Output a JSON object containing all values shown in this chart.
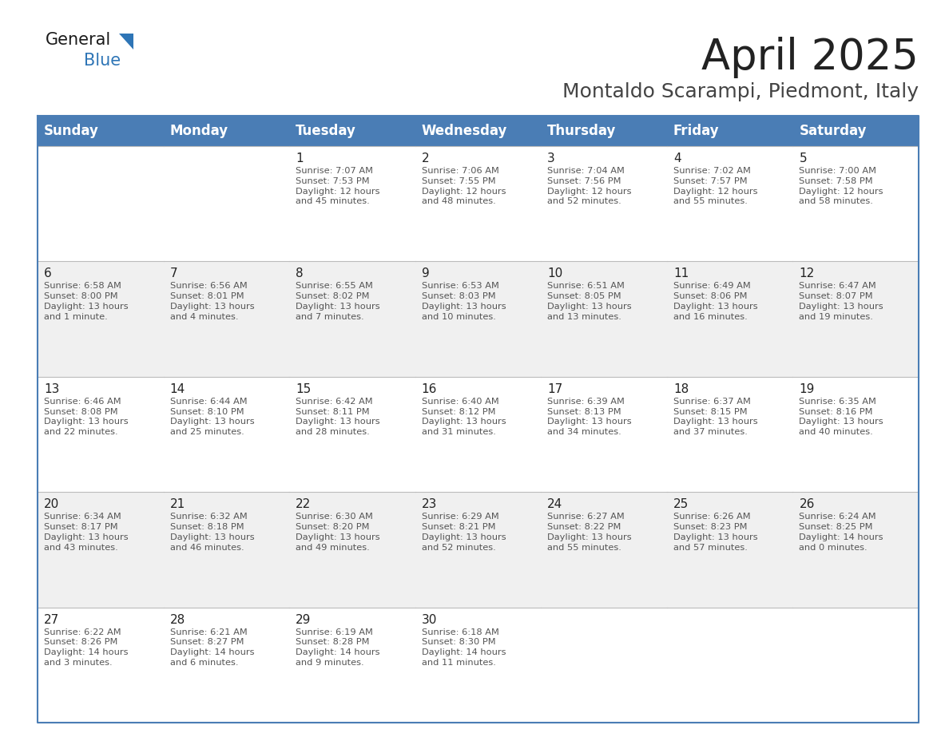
{
  "title": "April 2025",
  "subtitle": "Montaldo Scarampi, Piedmont, Italy",
  "header_bg_color": "#4a7db5",
  "header_text_color": "#FFFFFF",
  "row_bg_colors": [
    "#FFFFFF",
    "#F0F0F0"
  ],
  "border_color": "#4a7db5",
  "separator_color": "#BBBBBB",
  "day_names": [
    "Sunday",
    "Monday",
    "Tuesday",
    "Wednesday",
    "Thursday",
    "Friday",
    "Saturday"
  ],
  "title_fontsize": 38,
  "subtitle_fontsize": 18,
  "header_fontsize": 12,
  "day_num_fontsize": 11,
  "cell_text_fontsize": 8.2,
  "logo_general_color": "#1a1a1a",
  "logo_blue_color": "#2E75B6",
  "logo_triangle_color": "#2E75B6",
  "weeks": [
    [
      {
        "day": "",
        "lines": []
      },
      {
        "day": "",
        "lines": []
      },
      {
        "day": "1",
        "lines": [
          "Sunrise: 7:07 AM",
          "Sunset: 7:53 PM",
          "Daylight: 12 hours",
          "and 45 minutes."
        ]
      },
      {
        "day": "2",
        "lines": [
          "Sunrise: 7:06 AM",
          "Sunset: 7:55 PM",
          "Daylight: 12 hours",
          "and 48 minutes."
        ]
      },
      {
        "day": "3",
        "lines": [
          "Sunrise: 7:04 AM",
          "Sunset: 7:56 PM",
          "Daylight: 12 hours",
          "and 52 minutes."
        ]
      },
      {
        "day": "4",
        "lines": [
          "Sunrise: 7:02 AM",
          "Sunset: 7:57 PM",
          "Daylight: 12 hours",
          "and 55 minutes."
        ]
      },
      {
        "day": "5",
        "lines": [
          "Sunrise: 7:00 AM",
          "Sunset: 7:58 PM",
          "Daylight: 12 hours",
          "and 58 minutes."
        ]
      }
    ],
    [
      {
        "day": "6",
        "lines": [
          "Sunrise: 6:58 AM",
          "Sunset: 8:00 PM",
          "Daylight: 13 hours",
          "and 1 minute."
        ]
      },
      {
        "day": "7",
        "lines": [
          "Sunrise: 6:56 AM",
          "Sunset: 8:01 PM",
          "Daylight: 13 hours",
          "and 4 minutes."
        ]
      },
      {
        "day": "8",
        "lines": [
          "Sunrise: 6:55 AM",
          "Sunset: 8:02 PM",
          "Daylight: 13 hours",
          "and 7 minutes."
        ]
      },
      {
        "day": "9",
        "lines": [
          "Sunrise: 6:53 AM",
          "Sunset: 8:03 PM",
          "Daylight: 13 hours",
          "and 10 minutes."
        ]
      },
      {
        "day": "10",
        "lines": [
          "Sunrise: 6:51 AM",
          "Sunset: 8:05 PM",
          "Daylight: 13 hours",
          "and 13 minutes."
        ]
      },
      {
        "day": "11",
        "lines": [
          "Sunrise: 6:49 AM",
          "Sunset: 8:06 PM",
          "Daylight: 13 hours",
          "and 16 minutes."
        ]
      },
      {
        "day": "12",
        "lines": [
          "Sunrise: 6:47 AM",
          "Sunset: 8:07 PM",
          "Daylight: 13 hours",
          "and 19 minutes."
        ]
      }
    ],
    [
      {
        "day": "13",
        "lines": [
          "Sunrise: 6:46 AM",
          "Sunset: 8:08 PM",
          "Daylight: 13 hours",
          "and 22 minutes."
        ]
      },
      {
        "day": "14",
        "lines": [
          "Sunrise: 6:44 AM",
          "Sunset: 8:10 PM",
          "Daylight: 13 hours",
          "and 25 minutes."
        ]
      },
      {
        "day": "15",
        "lines": [
          "Sunrise: 6:42 AM",
          "Sunset: 8:11 PM",
          "Daylight: 13 hours",
          "and 28 minutes."
        ]
      },
      {
        "day": "16",
        "lines": [
          "Sunrise: 6:40 AM",
          "Sunset: 8:12 PM",
          "Daylight: 13 hours",
          "and 31 minutes."
        ]
      },
      {
        "day": "17",
        "lines": [
          "Sunrise: 6:39 AM",
          "Sunset: 8:13 PM",
          "Daylight: 13 hours",
          "and 34 minutes."
        ]
      },
      {
        "day": "18",
        "lines": [
          "Sunrise: 6:37 AM",
          "Sunset: 8:15 PM",
          "Daylight: 13 hours",
          "and 37 minutes."
        ]
      },
      {
        "day": "19",
        "lines": [
          "Sunrise: 6:35 AM",
          "Sunset: 8:16 PM",
          "Daylight: 13 hours",
          "and 40 minutes."
        ]
      }
    ],
    [
      {
        "day": "20",
        "lines": [
          "Sunrise: 6:34 AM",
          "Sunset: 8:17 PM",
          "Daylight: 13 hours",
          "and 43 minutes."
        ]
      },
      {
        "day": "21",
        "lines": [
          "Sunrise: 6:32 AM",
          "Sunset: 8:18 PM",
          "Daylight: 13 hours",
          "and 46 minutes."
        ]
      },
      {
        "day": "22",
        "lines": [
          "Sunrise: 6:30 AM",
          "Sunset: 8:20 PM",
          "Daylight: 13 hours",
          "and 49 minutes."
        ]
      },
      {
        "day": "23",
        "lines": [
          "Sunrise: 6:29 AM",
          "Sunset: 8:21 PM",
          "Daylight: 13 hours",
          "and 52 minutes."
        ]
      },
      {
        "day": "24",
        "lines": [
          "Sunrise: 6:27 AM",
          "Sunset: 8:22 PM",
          "Daylight: 13 hours",
          "and 55 minutes."
        ]
      },
      {
        "day": "25",
        "lines": [
          "Sunrise: 6:26 AM",
          "Sunset: 8:23 PM",
          "Daylight: 13 hours",
          "and 57 minutes."
        ]
      },
      {
        "day": "26",
        "lines": [
          "Sunrise: 6:24 AM",
          "Sunset: 8:25 PM",
          "Daylight: 14 hours",
          "and 0 minutes."
        ]
      }
    ],
    [
      {
        "day": "27",
        "lines": [
          "Sunrise: 6:22 AM",
          "Sunset: 8:26 PM",
          "Daylight: 14 hours",
          "and 3 minutes."
        ]
      },
      {
        "day": "28",
        "lines": [
          "Sunrise: 6:21 AM",
          "Sunset: 8:27 PM",
          "Daylight: 14 hours",
          "and 6 minutes."
        ]
      },
      {
        "day": "29",
        "lines": [
          "Sunrise: 6:19 AM",
          "Sunset: 8:28 PM",
          "Daylight: 14 hours",
          "and 9 minutes."
        ]
      },
      {
        "day": "30",
        "lines": [
          "Sunrise: 6:18 AM",
          "Sunset: 8:30 PM",
          "Daylight: 14 hours",
          "and 11 minutes."
        ]
      },
      {
        "day": "",
        "lines": []
      },
      {
        "day": "",
        "lines": []
      },
      {
        "day": "",
        "lines": []
      }
    ]
  ]
}
